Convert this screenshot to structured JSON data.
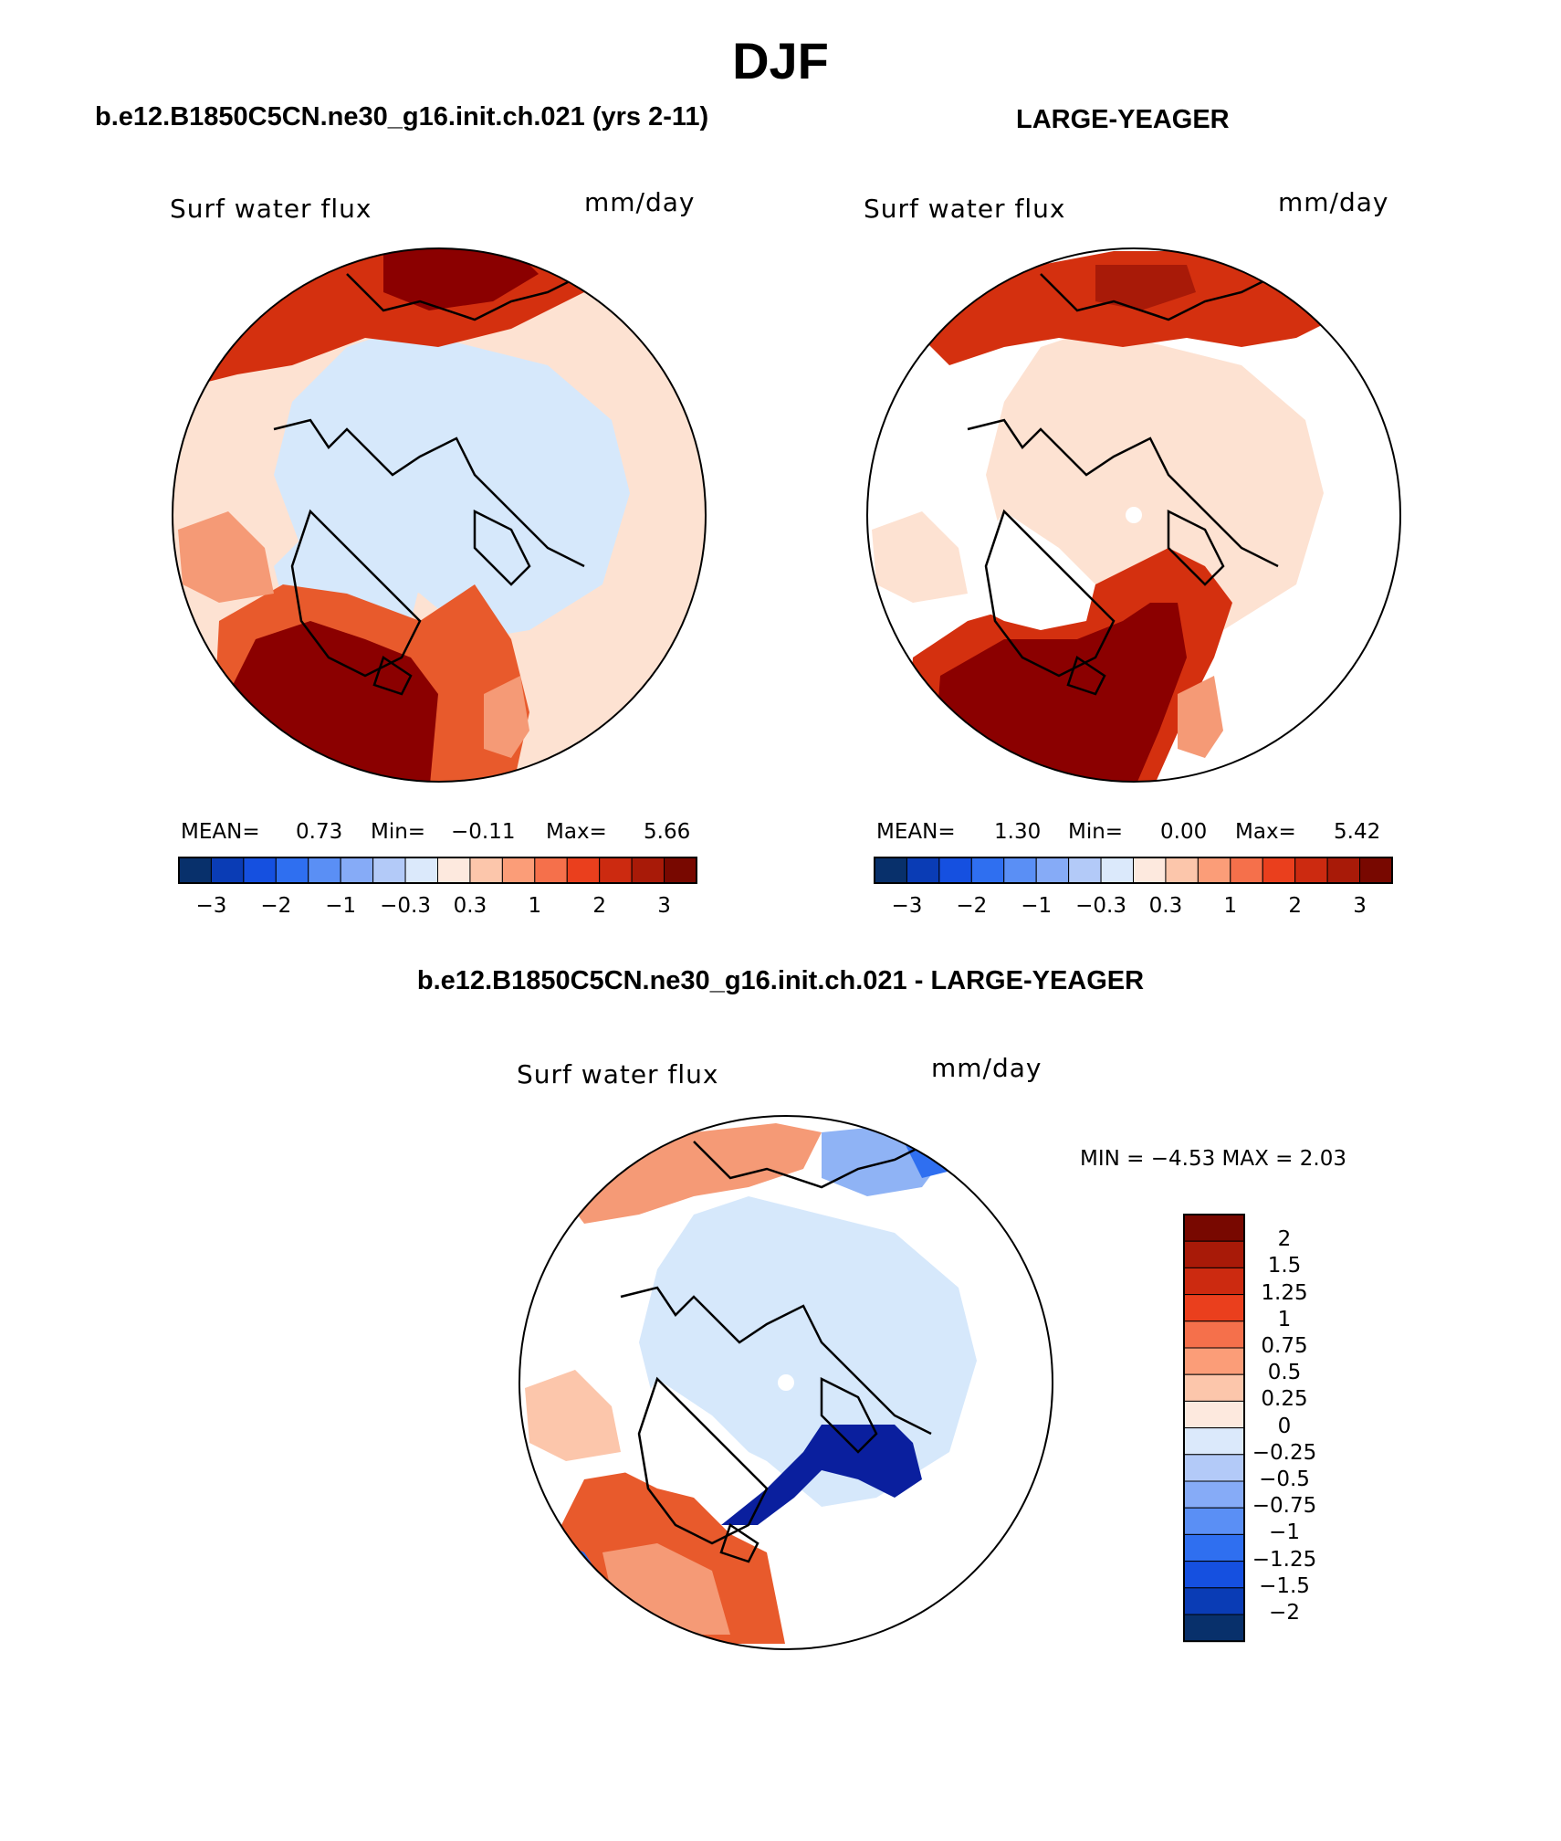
{
  "title": "DJF",
  "panels": [
    {
      "case_title": "b.e12.B1850C5CN.ne30_g16.init.ch.021 (yrs 2-11)",
      "variable": "Surf water flux",
      "units": "mm/day",
      "stats": {
        "mean_label": "MEAN=",
        "mean": "0.73",
        "min_label": "Min=",
        "min": "−0.11",
        "max_label": "Max=",
        "max": "5.66"
      }
    },
    {
      "case_title": "LARGE-YEAGER",
      "variable": "Surf water flux",
      "units": "mm/day",
      "stats": {
        "mean_label": "MEAN=",
        "mean": "1.30",
        "min_label": "Min=",
        "min": "0.00",
        "max_label": "Max=",
        "max": "5.42"
      }
    },
    {
      "case_title": "b.e12.B1850C5CN.ne30_g16.init.ch.021 - LARGE-YEAGER",
      "variable": "Surf water flux",
      "units": "mm/day",
      "stats_line": "MIN =   −4.53  MAX =     2.03"
    }
  ],
  "horizontal_colorbar": {
    "colors": [
      "#08306b",
      "#0a3cb5",
      "#1550e0",
      "#2f6ff0",
      "#5a8ff5",
      "#86abf7",
      "#b3caf8",
      "#dbe9fb",
      "#fde9de",
      "#fcc6ab",
      "#fb9d78",
      "#f5704b",
      "#ea3f1d",
      "#cc2a10",
      "#a81a08",
      "#780800"
    ],
    "tick_labels": [
      "−3",
      "−2",
      "−1",
      "−0.3",
      "0.3",
      "1",
      "2",
      "3"
    ]
  },
  "vertical_colorbar": {
    "colors_top_to_bottom": [
      "#780800",
      "#a81a08",
      "#cc2a10",
      "#ea3f1d",
      "#f5704b",
      "#fb9d78",
      "#fcc6ab",
      "#fde9de",
      "#dbe9fb",
      "#b3caf8",
      "#86abf7",
      "#5a8ff5",
      "#2f6ff0",
      "#1550e0",
      "#0a3cb5",
      "#08306b"
    ],
    "tick_labels": [
      "2",
      "1.5",
      "1.25",
      "1",
      "0.75",
      "0.5",
      "0.25",
      "0",
      "−0.25",
      "−0.5",
      "−0.75",
      "−1",
      "−1.25",
      "−1.5",
      "−2"
    ]
  },
  "map_fill_colors": {
    "deep_red": "#8b0000",
    "red": "#d4300f",
    "orange_red": "#e85a2c",
    "salmon": "#f59a76",
    "peach": "#fde2d2",
    "light_blue": "#d6e8fb",
    "mid_blue": "#8fb3f5",
    "blue": "#2f6ff0",
    "navy": "#0a1f9e",
    "white": "#ffffff"
  },
  "map_meta": {
    "projection": "north-polar-stereographic",
    "coastlines": "black"
  }
}
